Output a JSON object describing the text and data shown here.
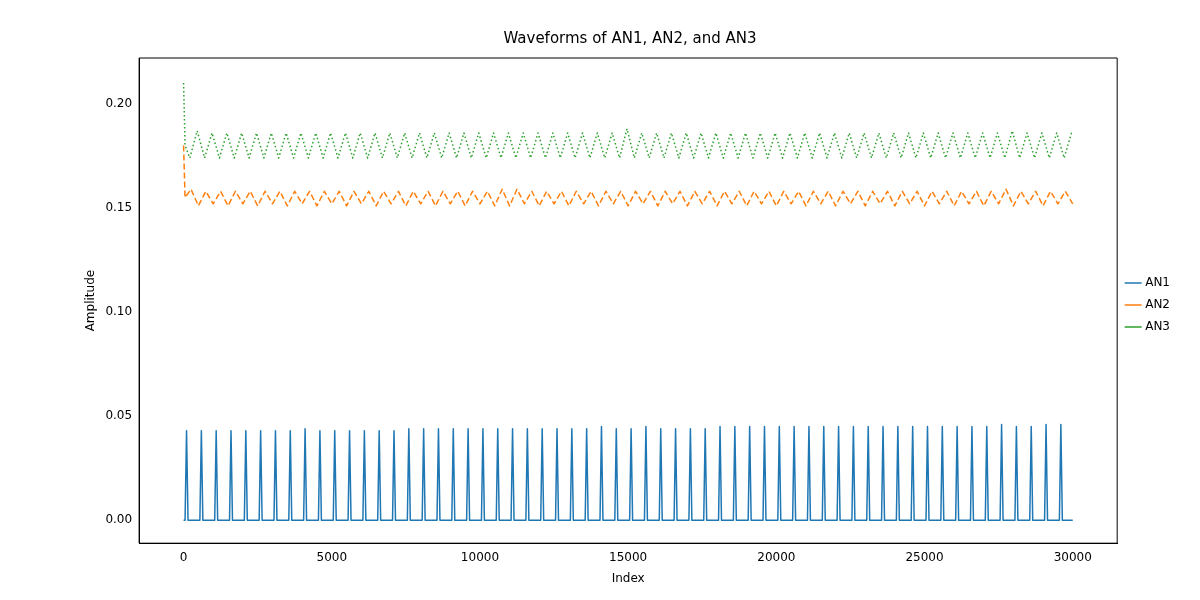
{
  "chart_data": {
    "type": "line",
    "title": "Waveforms of AN1, AN2, and AN3",
    "xlabel": "Index",
    "ylabel": "Amplitude",
    "xlim": [
      -1500,
      31500
    ],
    "ylim": [
      -0.011,
      0.222
    ],
    "xticks": [
      0,
      5000,
      10000,
      15000,
      20000,
      25000,
      30000
    ],
    "yticks": [
      {
        "value": 0,
        "label": "0.00"
      },
      {
        "value": 0.05,
        "label": "0.05"
      },
      {
        "value": 0.1,
        "label": "0.10"
      },
      {
        "value": 0.15,
        "label": "0.15"
      },
      {
        "value": 0.2,
        "label": "0.20"
      }
    ],
    "grid": false,
    "legend": "right",
    "series": [
      {
        "name": "AN1",
        "color": "#1f77b4",
        "line_style": "solid",
        "x": [
          0,
          50,
          100,
          150,
          550,
          600,
          650,
          1050,
          1100,
          1150,
          1550,
          1600,
          1650,
          2050,
          2100,
          2150,
          2550,
          2600,
          2650,
          3050,
          3100,
          3150,
          3550,
          3600,
          3650,
          4050,
          4100,
          4150,
          4550,
          4600,
          4650,
          5050,
          5100,
          5150,
          5550,
          5600,
          5650,
          6050,
          6100,
          6150,
          6550,
          6600,
          6650,
          7050,
          7100,
          7150,
          7550,
          7600,
          7650,
          8050,
          8100,
          8150,
          8550,
          8600,
          8650,
          9050,
          9100,
          9150,
          9550,
          9600,
          9650,
          10050,
          10100,
          10150,
          10550,
          10600,
          10650,
          11050,
          11100,
          11150,
          11550,
          11600,
          11650,
          12050,
          12100,
          12150,
          12550,
          12600,
          12650,
          13050,
          13100,
          13150,
          13550,
          13600,
          13650,
          14050,
          14100,
          14150,
          14550,
          14600,
          14650,
          15050,
          15100,
          15150,
          15550,
          15600,
          15650,
          16050,
          16100,
          16150,
          16550,
          16600,
          16650,
          17050,
          17100,
          17150,
          17550,
          17600,
          17650,
          18050,
          18100,
          18150,
          18550,
          18600,
          18650,
          19050,
          19100,
          19150,
          19550,
          19600,
          19650,
          20050,
          20100,
          20150,
          20550,
          20600,
          20650,
          21050,
          21100,
          21150,
          21550,
          21600,
          21650,
          22050,
          22100,
          22150,
          22550,
          22600,
          22650,
          23050,
          23100,
          23150,
          23550,
          23600,
          23650,
          24050,
          24100,
          24150,
          24550,
          24600,
          24650,
          25050,
          25100,
          25150,
          25550,
          25600,
          25650,
          26050,
          26100,
          26150,
          26550,
          26600,
          26650,
          27050,
          27100,
          27150,
          27550,
          27600,
          27650,
          28050,
          28100,
          28150,
          28550,
          28600,
          28650,
          29050,
          29100,
          29150,
          29550,
          29600,
          29650,
          30000
        ],
        "values": [
          0,
          0,
          0.043,
          0,
          0,
          0.043,
          0,
          0,
          0.043,
          0,
          0,
          0.043,
          0,
          0,
          0.043,
          0,
          0,
          0.043,
          0,
          0,
          0.043,
          0,
          0,
          0.043,
          0,
          0,
          0.044,
          0,
          0,
          0.043,
          0,
          0,
          0.043,
          0,
          0,
          0.043,
          0,
          0,
          0.043,
          0,
          0,
          0.043,
          0,
          0,
          0.043,
          0,
          0,
          0.044,
          0,
          0,
          0.044,
          0,
          0,
          0.044,
          0,
          0,
          0.044,
          0,
          0,
          0.044,
          0,
          0,
          0.044,
          0,
          0,
          0.044,
          0,
          0,
          0.044,
          0,
          0,
          0.044,
          0,
          0,
          0.044,
          0,
          0,
          0.044,
          0,
          0,
          0.044,
          0,
          0,
          0.044,
          0,
          0,
          0.045,
          0,
          0,
          0.044,
          0,
          0,
          0.044,
          0,
          0,
          0.045,
          0,
          0,
          0.044,
          0,
          0,
          0.044,
          0,
          0,
          0.044,
          0,
          0,
          0.044,
          0,
          0,
          0.045,
          0,
          0,
          0.045,
          0,
          0,
          0.045,
          0,
          0,
          0.045,
          0,
          0,
          0.045,
          0,
          0,
          0.045,
          0,
          0,
          0.045,
          0,
          0,
          0.045,
          0,
          0,
          0.045,
          0,
          0,
          0.045,
          0,
          0,
          0.045,
          0,
          0,
          0.045,
          0,
          0,
          0.045,
          0,
          0,
          0.045,
          0,
          0,
          0.045,
          0,
          0,
          0.045,
          0,
          0,
          0.045,
          0,
          0,
          0.045,
          0,
          0,
          0.045,
          0,
          0,
          0.046,
          0,
          0,
          0.045,
          0,
          0,
          0.045,
          0,
          0,
          0.046,
          0,
          0,
          0.046,
          0,
          0
        ]
      },
      {
        "name": "AN2",
        "color": "#ff7f0e",
        "line_style": "dashed",
        "x": [
          0,
          50,
          250,
          500,
          750,
          1000,
          1250,
          1500,
          1750,
          2000,
          2250,
          2500,
          2750,
          3000,
          3250,
          3500,
          3750,
          4000,
          4250,
          4500,
          4750,
          5000,
          5250,
          5500,
          5750,
          6000,
          6250,
          6500,
          6750,
          7000,
          7250,
          7500,
          7750,
          8000,
          8250,
          8500,
          8750,
          9000,
          9250,
          9500,
          9750,
          10000,
          10250,
          10500,
          10750,
          11000,
          11250,
          11500,
          11750,
          12000,
          12250,
          12500,
          12750,
          13000,
          13250,
          13500,
          13750,
          14000,
          14250,
          14500,
          14750,
          15000,
          15250,
          15500,
          15750,
          16000,
          16250,
          16500,
          16750,
          17000,
          17250,
          17500,
          17750,
          18000,
          18250,
          18500,
          18750,
          19000,
          19250,
          19500,
          19750,
          20000,
          20250,
          20500,
          20750,
          21000,
          21250,
          21500,
          21750,
          22000,
          22250,
          22500,
          22750,
          23000,
          23250,
          23500,
          23750,
          24000,
          24250,
          24500,
          24750,
          25000,
          25250,
          25500,
          25750,
          26000,
          26250,
          26500,
          26750,
          27000,
          27250,
          27500,
          27750,
          28000,
          28250,
          28500,
          28750,
          29000,
          29250,
          29500,
          29750,
          30000
        ],
        "values": [
          0.18,
          0.155,
          0.159,
          0.151,
          0.158,
          0.152,
          0.158,
          0.151,
          0.158,
          0.152,
          0.158,
          0.151,
          0.158,
          0.152,
          0.158,
          0.151,
          0.158,
          0.152,
          0.158,
          0.151,
          0.158,
          0.152,
          0.158,
          0.151,
          0.158,
          0.152,
          0.158,
          0.151,
          0.158,
          0.152,
          0.158,
          0.151,
          0.158,
          0.152,
          0.158,
          0.151,
          0.158,
          0.152,
          0.158,
          0.151,
          0.158,
          0.152,
          0.158,
          0.151,
          0.159,
          0.151,
          0.159,
          0.152,
          0.158,
          0.151,
          0.158,
          0.152,
          0.158,
          0.151,
          0.158,
          0.152,
          0.158,
          0.151,
          0.158,
          0.152,
          0.158,
          0.151,
          0.158,
          0.152,
          0.158,
          0.151,
          0.158,
          0.152,
          0.158,
          0.151,
          0.158,
          0.152,
          0.158,
          0.151,
          0.158,
          0.152,
          0.158,
          0.151,
          0.158,
          0.152,
          0.158,
          0.151,
          0.158,
          0.152,
          0.158,
          0.151,
          0.158,
          0.152,
          0.158,
          0.151,
          0.158,
          0.152,
          0.158,
          0.151,
          0.158,
          0.152,
          0.158,
          0.151,
          0.158,
          0.152,
          0.158,
          0.151,
          0.158,
          0.152,
          0.158,
          0.151,
          0.158,
          0.152,
          0.158,
          0.151,
          0.158,
          0.152,
          0.159,
          0.151,
          0.158,
          0.152,
          0.158,
          0.151,
          0.158,
          0.152,
          0.158,
          0.152
        ]
      },
      {
        "name": "AN3",
        "color": "#2ca02c",
        "line_style": "dotted",
        "x": [
          0,
          50,
          210,
          460,
          710,
          960,
          1210,
          1460,
          1710,
          1960,
          2210,
          2460,
          2710,
          2960,
          3210,
          3460,
          3710,
          3960,
          4210,
          4460,
          4710,
          4960,
          5210,
          5460,
          5710,
          5960,
          6210,
          6460,
          6710,
          6960,
          7210,
          7460,
          7710,
          7960,
          8210,
          8460,
          8710,
          8960,
          9210,
          9460,
          9710,
          9960,
          10210,
          10460,
          10710,
          10960,
          11210,
          11460,
          11710,
          11960,
          12210,
          12460,
          12710,
          12960,
          13210,
          13460,
          13710,
          13960,
          14210,
          14460,
          14710,
          14960,
          15210,
          15460,
          15710,
          15960,
          16210,
          16460,
          16710,
          16960,
          17210,
          17460,
          17710,
          17960,
          18210,
          18460,
          18710,
          18960,
          19210,
          19460,
          19710,
          19960,
          20210,
          20460,
          20710,
          20960,
          21210,
          21460,
          21710,
          21960,
          22210,
          22460,
          22710,
          22960,
          23210,
          23460,
          23710,
          23960,
          24210,
          24460,
          24710,
          24960,
          25210,
          25460,
          25710,
          25960,
          26210,
          26460,
          26710,
          26960,
          27210,
          27460,
          27710,
          27960,
          28210,
          28460,
          28710,
          28960,
          29210,
          29460,
          29710,
          29960,
          30000
        ],
        "values": [
          0.21,
          0.18,
          0.174,
          0.187,
          0.174,
          0.186,
          0.174,
          0.186,
          0.174,
          0.186,
          0.174,
          0.186,
          0.174,
          0.186,
          0.174,
          0.186,
          0.174,
          0.186,
          0.174,
          0.186,
          0.174,
          0.186,
          0.174,
          0.186,
          0.174,
          0.186,
          0.174,
          0.186,
          0.174,
          0.186,
          0.174,
          0.186,
          0.174,
          0.186,
          0.174,
          0.186,
          0.174,
          0.186,
          0.174,
          0.186,
          0.174,
          0.186,
          0.174,
          0.186,
          0.174,
          0.186,
          0.174,
          0.186,
          0.174,
          0.186,
          0.174,
          0.186,
          0.174,
          0.186,
          0.174,
          0.186,
          0.174,
          0.186,
          0.174,
          0.186,
          0.174,
          0.188,
          0.174,
          0.186,
          0.174,
          0.186,
          0.174,
          0.186,
          0.174,
          0.186,
          0.174,
          0.186,
          0.174,
          0.186,
          0.174,
          0.186,
          0.174,
          0.186,
          0.174,
          0.186,
          0.174,
          0.186,
          0.174,
          0.186,
          0.174,
          0.186,
          0.174,
          0.186,
          0.174,
          0.186,
          0.174,
          0.186,
          0.174,
          0.186,
          0.174,
          0.186,
          0.174,
          0.186,
          0.174,
          0.186,
          0.174,
          0.186,
          0.174,
          0.186,
          0.174,
          0.186,
          0.174,
          0.186,
          0.174,
          0.186,
          0.174,
          0.186,
          0.174,
          0.187,
          0.174,
          0.186,
          0.174,
          0.186,
          0.174,
          0.186,
          0.174,
          0.186,
          0.186
        ]
      }
    ]
  }
}
